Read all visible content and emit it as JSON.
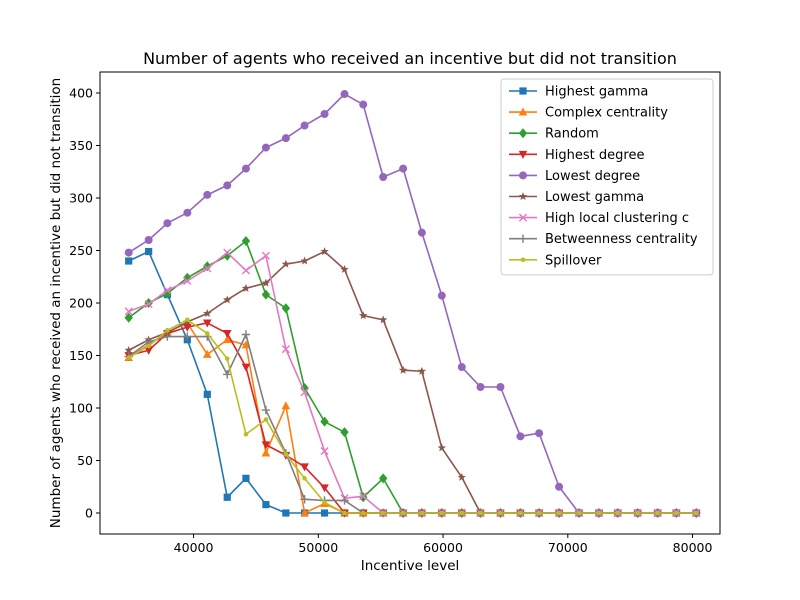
{
  "chart_data": {
    "type": "line",
    "title": "Number of agents who received an incentive but did not transition",
    "xlabel": "Incentive level",
    "ylabel": "Number of agents who received an incentive but did not transition",
    "xlim": [
      32500,
      82200
    ],
    "ylim": [
      -20,
      420
    ],
    "xticks": [
      40000,
      50000,
      60000,
      70000,
      80000
    ],
    "xtick_labels": [
      "40000",
      "50000",
      "60000",
      "70000",
      "80000"
    ],
    "yticks": [
      0,
      50,
      100,
      150,
      200,
      250,
      300,
      350,
      400
    ],
    "ytick_labels": [
      "0",
      "50",
      "100",
      "150",
      "200",
      "250",
      "300",
      "350",
      "400"
    ],
    "grid": false,
    "legend_position": "top-right",
    "x": [
      34800,
      36400,
      37900,
      39500,
      41100,
      42700,
      44200,
      45800,
      47400,
      48900,
      50500,
      52100,
      53600,
      55200,
      56800,
      58300,
      59900,
      61500,
      63000,
      64600,
      66200,
      67700,
      69300,
      70900,
      72500,
      74000,
      75600,
      77200,
      78700,
      80300
    ],
    "series": [
      {
        "name": "Highest gamma",
        "color": "#1f77b4",
        "marker": "square",
        "values": [
          240,
          249,
          208,
          165,
          113,
          15,
          33,
          8,
          0,
          0,
          0,
          0,
          0,
          0,
          0,
          0,
          0,
          0,
          0,
          0,
          0,
          0,
          0,
          0,
          0,
          0,
          0,
          0,
          0,
          0
        ]
      },
      {
        "name": "Complex centrality",
        "color": "#ff7f0e",
        "marker": "triangle-up",
        "values": [
          148,
          160,
          172,
          181,
          151,
          165,
          160,
          57,
          102,
          0,
          9,
          0,
          0,
          0,
          0,
          0,
          0,
          0,
          0,
          0,
          0,
          0,
          0,
          0,
          0,
          0,
          0,
          0,
          0,
          0
        ]
      },
      {
        "name": "Random",
        "color": "#2ca02c",
        "marker": "diamond",
        "values": [
          186,
          200,
          209,
          224,
          235,
          245,
          259,
          208,
          195,
          119,
          87,
          77,
          15,
          33,
          0,
          0,
          0,
          0,
          0,
          0,
          0,
          0,
          0,
          0,
          0,
          0,
          0,
          0,
          0,
          0
        ]
      },
      {
        "name": "Highest degree",
        "color": "#d62728",
        "marker": "triangle-down",
        "values": [
          150,
          155,
          171,
          177,
          181,
          171,
          139,
          65,
          55,
          44,
          24,
          0,
          0,
          0,
          0,
          0,
          0,
          0,
          0,
          0,
          0,
          0,
          0,
          0,
          0,
          0,
          0,
          0,
          0,
          0
        ]
      },
      {
        "name": "Lowest degree",
        "color": "#9467bd",
        "marker": "circle",
        "values": [
          248,
          260,
          276,
          286,
          303,
          312,
          328,
          348,
          357,
          369,
          380,
          399,
          389,
          320,
          328,
          267,
          207,
          139,
          120,
          120,
          73,
          76,
          25,
          0,
          0,
          0,
          0,
          0,
          0,
          0
        ]
      },
      {
        "name": "Lowest gamma",
        "color": "#8c564b",
        "marker": "star",
        "values": [
          155,
          165,
          172,
          182,
          190,
          203,
          214,
          219,
          237,
          240,
          249,
          232,
          188,
          184,
          136,
          135,
          62,
          34,
          0,
          0,
          0,
          0,
          0,
          0,
          0,
          0,
          0,
          0,
          0,
          0
        ]
      },
      {
        "name": "High local clustering c",
        "color": "#e377c2",
        "marker": "x",
        "values": [
          192,
          199,
          212,
          221,
          233,
          248,
          231,
          245,
          156,
          115,
          59,
          14,
          16,
          0,
          0,
          0,
          0,
          0,
          0,
          0,
          0,
          0,
          0,
          0,
          0,
          0,
          0,
          0,
          0,
          0
        ]
      },
      {
        "name": "Betweenness centrality",
        "color": "#7f7f7f",
        "marker": "plus",
        "values": [
          149,
          163,
          168,
          168,
          168,
          132,
          170,
          98,
          57,
          13,
          12,
          12,
          0,
          0,
          0,
          0,
          0,
          0,
          0,
          0,
          0,
          0,
          0,
          0,
          0,
          0,
          0,
          0,
          0,
          0
        ]
      },
      {
        "name": "Spillover",
        "color": "#bcbd22",
        "marker": "point",
        "values": [
          148,
          159,
          174,
          184,
          171,
          147,
          75,
          89,
          56,
          33,
          10,
          0,
          0,
          0,
          0,
          0,
          0,
          0,
          0,
          0,
          0,
          0,
          0,
          0,
          0,
          0,
          0,
          0,
          0,
          0
        ]
      }
    ]
  }
}
